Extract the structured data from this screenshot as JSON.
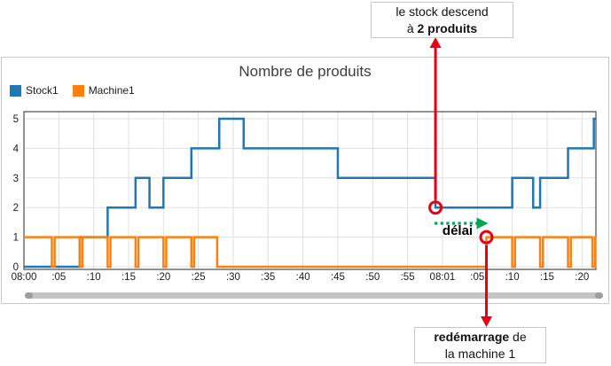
{
  "annotations": {
    "stock_drop": {
      "line1": "le stock descend",
      "line2_prefix": "à ",
      "line2_bold": "2 produits",
      "anchor_t_seconds": 59,
      "anchor_value": 2
    },
    "restart": {
      "line1_bold": "redémarrage",
      "line1_suffix": " de",
      "line2": "la machine 1",
      "anchor_t_seconds": 66.3,
      "anchor_value": 1
    },
    "delay_label": "délai"
  },
  "chart": {
    "title": "Nombre de produits",
    "legend": [
      {
        "label": "Stock1",
        "color": "#1f77b4"
      },
      {
        "label": "Machine1",
        "color": "#ff7f0e"
      }
    ]
  },
  "chart_data": {
    "type": "line",
    "title": "Nombre de produits",
    "xlabel": "",
    "ylabel": "",
    "x_axis": {
      "unit": "time (mm:ss), seconds after 08:00:00",
      "range_seconds": [
        0,
        82
      ],
      "grid": true,
      "ticks": [
        {
          "t": 0,
          "label": "08:00"
        },
        {
          "t": 5,
          "label": ":05"
        },
        {
          "t": 10,
          "label": ":10"
        },
        {
          "t": 15,
          "label": ":15"
        },
        {
          "t": 20,
          "label": ":20"
        },
        {
          "t": 25,
          "label": ":25"
        },
        {
          "t": 30,
          "label": ":30"
        },
        {
          "t": 35,
          "label": ":35"
        },
        {
          "t": 40,
          "label": ":40"
        },
        {
          "t": 45,
          "label": ":45"
        },
        {
          "t": 50,
          "label": ":50"
        },
        {
          "t": 55,
          "label": ":55"
        },
        {
          "t": 60,
          "label": "08:01"
        },
        {
          "t": 65,
          "label": ":05"
        },
        {
          "t": 70,
          "label": ":10"
        },
        {
          "t": 75,
          "label": ":15"
        },
        {
          "t": 80,
          "label": ":20"
        }
      ]
    },
    "y_axis": {
      "range": [
        0,
        5
      ],
      "ticks": [
        0,
        1,
        2,
        3,
        4,
        5
      ],
      "grid": true
    },
    "legend_position": "top-left",
    "series": [
      {
        "name": "Stock1",
        "color": "#1f77b4",
        "style": "step-after",
        "step_points": [
          [
            0,
            0
          ],
          [
            8,
            1
          ],
          [
            12,
            2
          ],
          [
            16,
            3
          ],
          [
            18,
            2
          ],
          [
            20,
            3
          ],
          [
            24,
            4
          ],
          [
            28,
            5
          ],
          [
            31.5,
            4
          ],
          [
            45,
            3
          ],
          [
            59,
            2
          ],
          [
            70,
            3
          ],
          [
            73,
            2
          ],
          [
            74,
            3
          ],
          [
            78,
            4
          ],
          [
            81.7,
            5
          ],
          [
            82,
            5
          ]
        ]
      },
      {
        "name": "Machine1",
        "color": "#ff7f0e",
        "style": "step-after",
        "step_points": [
          [
            0,
            1
          ],
          [
            4,
            0
          ],
          [
            4.4,
            1
          ],
          [
            8,
            0
          ],
          [
            8.4,
            1
          ],
          [
            12,
            0
          ],
          [
            12.4,
            1
          ],
          [
            16,
            0
          ],
          [
            16.4,
            1
          ],
          [
            20,
            0
          ],
          [
            20.4,
            1
          ],
          [
            24,
            0
          ],
          [
            24.4,
            1
          ],
          [
            27.7,
            0
          ],
          [
            66.3,
            1
          ],
          [
            70,
            0
          ],
          [
            70.4,
            1
          ],
          [
            74,
            0
          ],
          [
            74.4,
            1
          ],
          [
            78,
            0
          ],
          [
            78.4,
            1
          ],
          [
            81.5,
            0
          ],
          [
            81.9,
            1
          ],
          [
            82,
            1
          ]
        ]
      }
    ],
    "annotations_on_chart": [
      {
        "label": "le stock descend à 2 produits",
        "t": 59,
        "value": 2
      },
      {
        "label": "redémarrage de la machine 1",
        "t": 66.3,
        "value": 1
      },
      {
        "label": "délai",
        "from_t": 59,
        "to_t": 66.3
      }
    ]
  },
  "colors": {
    "stock1": "#1f77b4",
    "machine1": "#ff7f0e",
    "annotation_red": "#e60012",
    "delay_green": "#00a550",
    "grid": "#e0e0e0",
    "plot_frame": "#4a4a4a",
    "widget_border": "#c9c9c9",
    "scrollbar": "#c4c4c4",
    "scrollbar_caps": "#9e9e9e",
    "tick_text": "#1a1a1a",
    "title_text": "#3d3d3d"
  }
}
